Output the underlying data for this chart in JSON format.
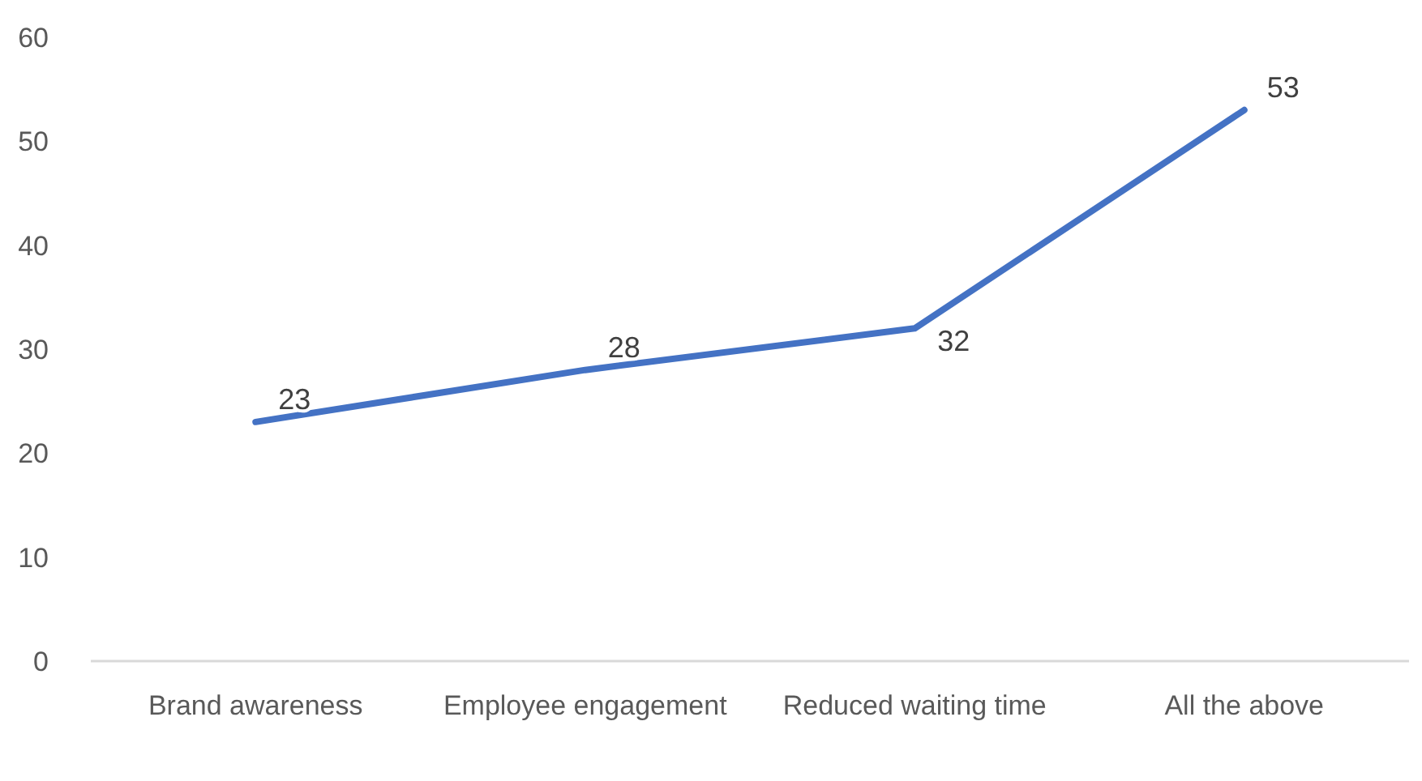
{
  "chart_data": {
    "type": "line",
    "categories": [
      "Brand awareness",
      "Employee engagement",
      "Reduced waiting time",
      "All the above"
    ],
    "series": [
      {
        "color": "#4472c4",
        "values": [
          23,
          28,
          32,
          53
        ]
      }
    ],
    "ylim": [
      0,
      60
    ],
    "yticks": [
      0,
      10,
      20,
      30,
      40,
      50,
      60
    ],
    "grid": false,
    "data_labels": true,
    "marker": "none"
  }
}
